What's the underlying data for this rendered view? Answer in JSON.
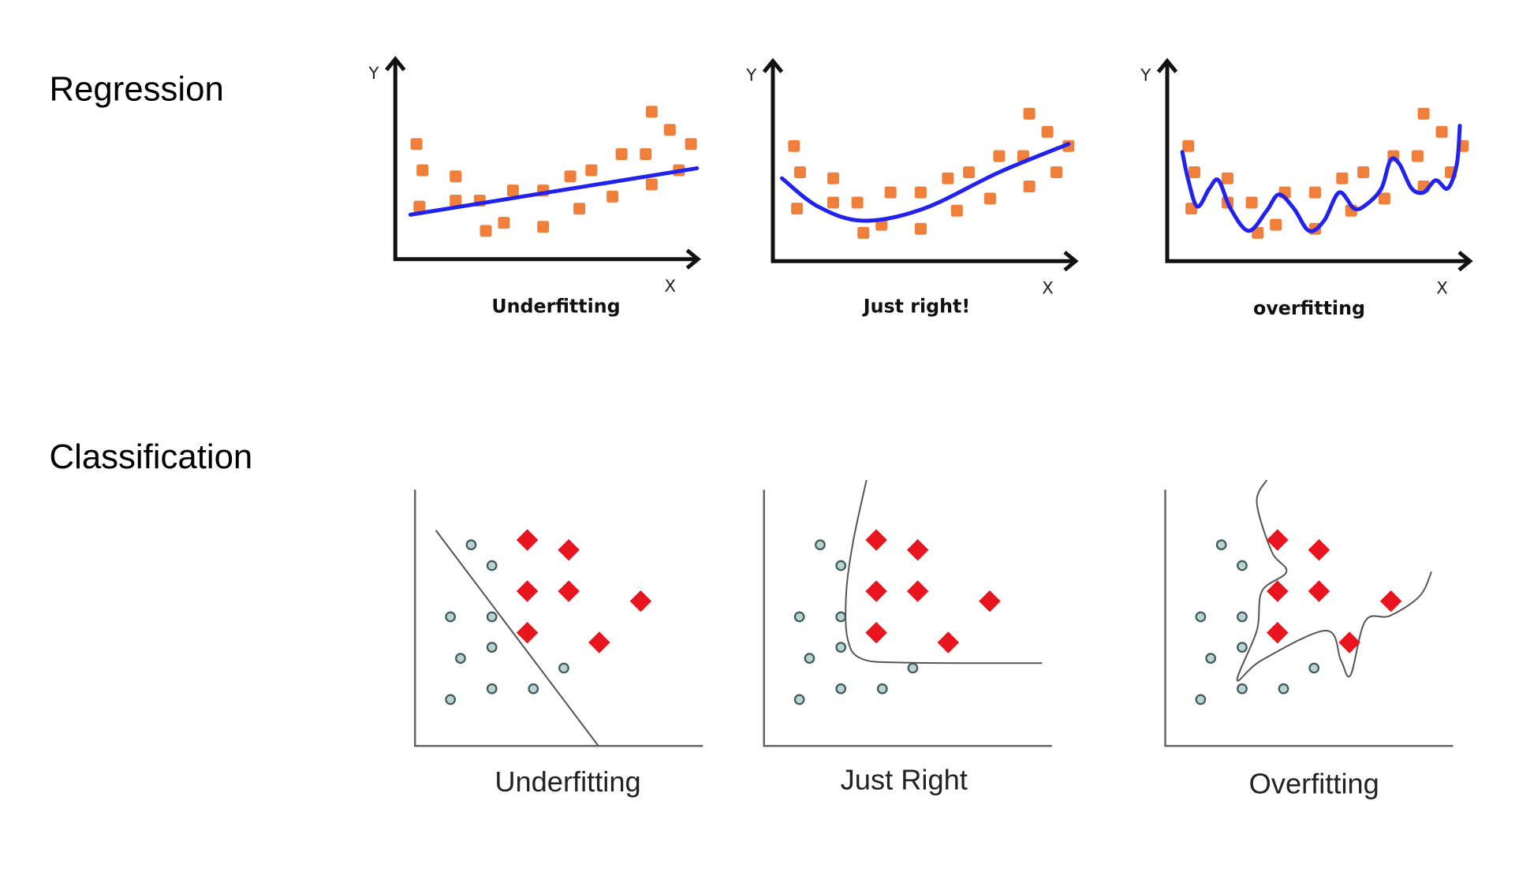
{
  "sections": {
    "regression": "Regression",
    "classification": "Classification"
  },
  "colors": {
    "points": "#f07f3c",
    "fit": "#2222ee",
    "diamond": "#e8141e",
    "circle_fill": "#b9d3d3",
    "circle_stroke": "#3e5a5a",
    "boundary": "#555555"
  },
  "chart_data": [
    {
      "type": "scatter",
      "group": "regression",
      "title": "Underfitting",
      "xlabel": "X",
      "ylabel": "Y",
      "xlim": [
        0,
        100
      ],
      "ylim": [
        0,
        100
      ],
      "points": [
        [
          7,
          57
        ],
        [
          9,
          44
        ],
        [
          8,
          26
        ],
        [
          20,
          41
        ],
        [
          20,
          29
        ],
        [
          28,
          29
        ],
        [
          30,
          14
        ],
        [
          36,
          18
        ],
        [
          39,
          34
        ],
        [
          49,
          34
        ],
        [
          49,
          16
        ],
        [
          58,
          41
        ],
        [
          61,
          25
        ],
        [
          65,
          44
        ],
        [
          72,
          31
        ],
        [
          75,
          52
        ],
        [
          83,
          52
        ],
        [
          85,
          37
        ],
        [
          85,
          73
        ],
        [
          91,
          64
        ],
        [
          94,
          44
        ],
        [
          98,
          57
        ]
      ],
      "fit": [
        [
          5,
          22
        ],
        [
          100,
          45
        ]
      ]
    },
    {
      "type": "scatter",
      "group": "regression",
      "title": "Just right!",
      "xlabel": "X",
      "ylabel": "Y",
      "xlim": [
        0,
        100
      ],
      "ylim": [
        0,
        100
      ],
      "points": [
        [
          7,
          57
        ],
        [
          9,
          44
        ],
        [
          8,
          26
        ],
        [
          20,
          41
        ],
        [
          20,
          29
        ],
        [
          28,
          29
        ],
        [
          30,
          14
        ],
        [
          36,
          18
        ],
        [
          39,
          34
        ],
        [
          49,
          34
        ],
        [
          49,
          16
        ],
        [
          58,
          41
        ],
        [
          61,
          25
        ],
        [
          65,
          44
        ],
        [
          72,
          31
        ],
        [
          75,
          52
        ],
        [
          83,
          52
        ],
        [
          85,
          37
        ],
        [
          85,
          73
        ],
        [
          91,
          64
        ],
        [
          94,
          44
        ],
        [
          98,
          57
        ]
      ],
      "fit": [
        [
          3,
          41
        ],
        [
          15,
          27
        ],
        [
          30,
          20
        ],
        [
          50,
          26
        ],
        [
          75,
          44
        ],
        [
          98,
          58
        ]
      ]
    },
    {
      "type": "scatter",
      "group": "regression",
      "title": "overfitting",
      "xlabel": "X",
      "ylabel": "Y",
      "xlim": [
        0,
        100
      ],
      "ylim": [
        0,
        100
      ],
      "points": [
        [
          7,
          57
        ],
        [
          9,
          44
        ],
        [
          8,
          26
        ],
        [
          20,
          41
        ],
        [
          20,
          29
        ],
        [
          28,
          29
        ],
        [
          30,
          14
        ],
        [
          36,
          18
        ],
        [
          39,
          34
        ],
        [
          49,
          34
        ],
        [
          49,
          16
        ],
        [
          58,
          41
        ],
        [
          61,
          25
        ],
        [
          65,
          44
        ],
        [
          72,
          31
        ],
        [
          75,
          52
        ],
        [
          83,
          52
        ],
        [
          85,
          37
        ],
        [
          85,
          73
        ],
        [
          91,
          64
        ],
        [
          94,
          44
        ],
        [
          98,
          57
        ]
      ],
      "fit": [
        [
          5,
          54
        ],
        [
          7,
          40
        ],
        [
          10,
          27
        ],
        [
          14,
          36
        ],
        [
          17,
          40
        ],
        [
          21,
          26
        ],
        [
          27,
          15
        ],
        [
          33,
          25
        ],
        [
          37,
          33
        ],
        [
          42,
          26
        ],
        [
          47,
          15
        ],
        [
          52,
          20
        ],
        [
          57,
          34
        ],
        [
          62,
          26
        ],
        [
          66,
          28
        ],
        [
          71,
          36
        ],
        [
          74,
          50
        ],
        [
          77,
          48
        ],
        [
          81,
          36
        ],
        [
          85,
          34
        ],
        [
          89,
          40
        ],
        [
          93,
          36
        ],
        [
          96,
          48
        ],
        [
          97,
          67
        ]
      ]
    },
    {
      "type": "scatter",
      "group": "classification",
      "title": "Underfitting",
      "xlim": [
        0,
        100
      ],
      "ylim": [
        0,
        100
      ],
      "circles": [
        [
          19.5,
          78.5
        ],
        [
          26.7,
          70.4
        ],
        [
          12.3,
          50.4
        ],
        [
          26.7,
          50.4
        ],
        [
          15.8,
          34.2
        ],
        [
          26.7,
          38.5
        ],
        [
          12.3,
          18.1
        ],
        [
          26.7,
          22.3
        ],
        [
          41.1,
          22.3
        ],
        [
          51.7,
          30.4
        ]
      ],
      "diamonds": [
        [
          39,
          80.4
        ],
        [
          53.4,
          76.5
        ],
        [
          39,
          60.4
        ],
        [
          53.4,
          60.4
        ],
        [
          78.4,
          56.5
        ],
        [
          39,
          44.2
        ],
        [
          64,
          40.4
        ]
      ],
      "boundary": [
        [
          7.2,
          84.2
        ],
        [
          63.7,
          0
        ]
      ]
    },
    {
      "type": "scatter",
      "group": "classification",
      "title": "Just Right",
      "xlim": [
        0,
        100
      ],
      "ylim": [
        0,
        100
      ],
      "circles": [
        [
          19.5,
          78.5
        ],
        [
          26.7,
          70.4
        ],
        [
          12.3,
          50.4
        ],
        [
          26.7,
          50.4
        ],
        [
          15.8,
          34.2
        ],
        [
          26.7,
          38.5
        ],
        [
          12.3,
          18.1
        ],
        [
          26.7,
          22.3
        ],
        [
          41.1,
          22.3
        ],
        [
          51.7,
          30.4
        ]
      ],
      "diamonds": [
        [
          39,
          80.4
        ],
        [
          53.4,
          76.5
        ],
        [
          39,
          60.4
        ],
        [
          53.4,
          60.4
        ],
        [
          78.4,
          56.5
        ],
        [
          39,
          44.2
        ],
        [
          64,
          40.4
        ]
      ],
      "boundary": [
        [
          35.6,
          103.8
        ],
        [
          31,
          80
        ],
        [
          28.6,
          60.4
        ],
        [
          29,
          42
        ],
        [
          34,
          34
        ],
        [
          50,
          32.5
        ],
        [
          96.6,
          32.3
        ]
      ]
    },
    {
      "type": "scatter",
      "group": "classification",
      "title": "Overfitting",
      "xlim": [
        0,
        100
      ],
      "ylim": [
        0,
        100
      ],
      "circles": [
        [
          19.5,
          78.5
        ],
        [
          26.7,
          70.4
        ],
        [
          12.3,
          50.4
        ],
        [
          26.7,
          50.4
        ],
        [
          15.8,
          34.2
        ],
        [
          26.7,
          38.5
        ],
        [
          12.3,
          18.1
        ],
        [
          26.7,
          22.3
        ],
        [
          41.1,
          22.3
        ],
        [
          51.7,
          30.4
        ]
      ],
      "diamonds": [
        [
          39,
          80.4
        ],
        [
          53.4,
          76.5
        ],
        [
          39,
          60.4
        ],
        [
          53.4,
          60.4
        ],
        [
          78.4,
          56.5
        ],
        [
          39,
          44.2
        ],
        [
          64,
          40.4
        ]
      ],
      "boundary": [
        [
          35.3,
          103.8
        ],
        [
          31.8,
          95
        ],
        [
          37,
          75.8
        ],
        [
          42.1,
          68
        ],
        [
          33.6,
          60.4
        ],
        [
          31.8,
          45
        ],
        [
          25,
          25.8
        ],
        [
          33.6,
          33.5
        ],
        [
          55.8,
          45
        ],
        [
          61,
          33.5
        ],
        [
          64.4,
          27.7
        ],
        [
          69.5,
          48.8
        ],
        [
          78.1,
          50.8
        ],
        [
          88.4,
          58.5
        ],
        [
          92.5,
          68
        ]
      ]
    }
  ]
}
